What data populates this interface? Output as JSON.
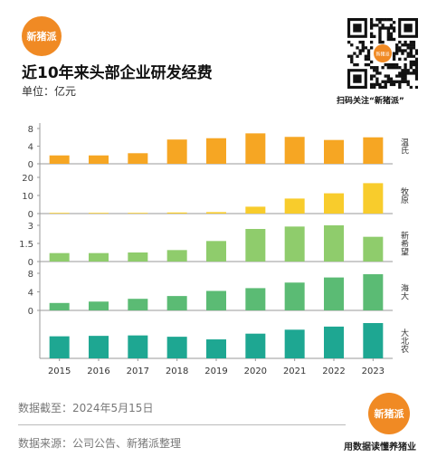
{
  "brand": {
    "logo_text": "新猪派",
    "qr_caption": "扫码关注“新猪派”",
    "qr_center": "新猪派",
    "slogan": "用数据读懂养猪业"
  },
  "header": {
    "title": "近10年来头部企业研发经费",
    "unit": "单位：亿元"
  },
  "footer": {
    "cutoff": "数据截至：2024年5月15日",
    "source": "数据来源：公司公告、新猪派整理"
  },
  "colors": {
    "background": "#ffffff",
    "muyuan": "#f6a623",
    "wens": "#f8cc2c",
    "newhope": "#8fcc6c",
    "haida": "#5bbb74",
    "dabeinong": "#1ea792"
  },
  "chart_data": {
    "type": "bar",
    "categories": [
      "2015",
      "2016",
      "2017",
      "2018",
      "2019",
      "2020",
      "2021",
      "2022",
      "2023"
    ],
    "panels": [
      {
        "name": "温氏",
        "color": "#f6a623",
        "ylim": [
          0,
          8
        ],
        "ticks": [
          "0",
          "4",
          "8"
        ],
        "values": [
          1.9,
          1.9,
          2.4,
          5.5,
          5.8,
          6.9,
          6.1,
          5.4,
          6.0
        ]
      },
      {
        "name": "牧原",
        "color": "#f8cc2c",
        "ylim": [
          0,
          20
        ],
        "ticks": [
          "0",
          "10",
          "20"
        ],
        "values": [
          0.1,
          0.1,
          0.4,
          0.6,
          0.8,
          3.8,
          8.3,
          11.2,
          16.8
        ]
      },
      {
        "name": "新希望",
        "color": "#8fcc6c",
        "ylim": [
          0,
          3
        ],
        "ticks": [
          "0",
          "1.5",
          "3"
        ],
        "values": [
          0.7,
          0.7,
          0.75,
          0.95,
          1.7,
          2.7,
          2.9,
          3.0,
          2.05
        ]
      },
      {
        "name": "海大",
        "color": "#5bbb74",
        "ylim": [
          0,
          8
        ],
        "ticks": [
          "0",
          "4",
          "8"
        ],
        "values": [
          1.6,
          1.9,
          2.5,
          3.1,
          4.2,
          4.8,
          6.0,
          7.1,
          7.8
        ]
      },
      {
        "name": "大北农",
        "color": "#1ea792",
        "ylim": [
          0,
          8
        ],
        "ticks": [],
        "values": [
          5.0,
          5.1,
          5.2,
          4.9,
          4.3,
          5.6,
          6.5,
          7.2,
          8.0
        ]
      }
    ]
  }
}
